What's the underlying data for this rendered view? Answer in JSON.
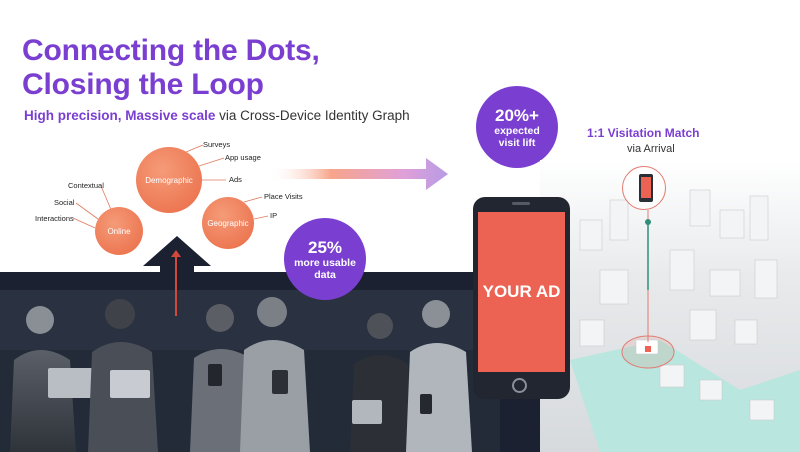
{
  "title": {
    "line1": "Connecting the Dots,",
    "line2": "Closing the Loop"
  },
  "subtitle": {
    "strong": "High precision, Massive scale",
    "rest": "via Cross-Device Identity Graph"
  },
  "bubbles": {
    "demographic": "Demographic",
    "online": "Online",
    "geographic": "Geographic"
  },
  "labels": {
    "surveys": "Surveys",
    "app_usage": "App usage",
    "ads": "Ads",
    "contextual": "Contextual",
    "social": "Social",
    "interactions": "Interactions",
    "place_visits": "Place Visits",
    "ip": "IP"
  },
  "stat_data": {
    "big": "25%",
    "line1": "more usable",
    "line2": "data"
  },
  "stat_visit": {
    "big": "20%+",
    "line1": "expected",
    "line2": "visit lift"
  },
  "visitation": {
    "title": "1:1 Visitation Match",
    "sub": "via Arrival"
  },
  "phone": {
    "ad_text": "YOUR AD"
  },
  "colors": {
    "accent": "#7a3fd1",
    "bubble": "#ea6a45",
    "ad_screen": "#ec6353",
    "dark_band": "#1b2130"
  }
}
